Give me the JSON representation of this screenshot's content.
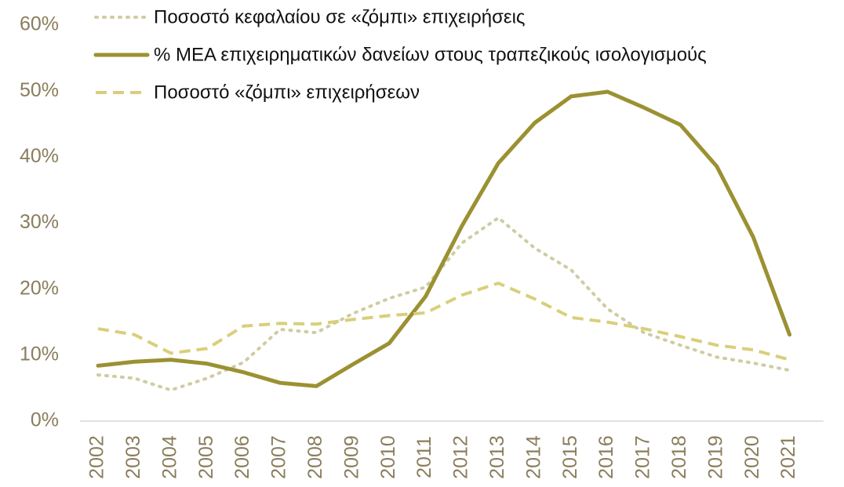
{
  "chart_data": {
    "type": "line",
    "categories": [
      "2002",
      "2003",
      "2004",
      "2005",
      "2006",
      "2007",
      "2008",
      "2009",
      "2010",
      "2011",
      "2012",
      "2013",
      "2014",
      "2015",
      "2016",
      "2017",
      "2018",
      "2019",
      "2020",
      "2021"
    ],
    "series": [
      {
        "name": "Ποσοστό κεφαλαίου σε «ζόμπι» επιχειρήσεις",
        "color": "#cfcca2",
        "dash": "dotted",
        "values": [
          7.0,
          6.5,
          4.7,
          6.5,
          8.9,
          13.9,
          13.4,
          16.3,
          18.6,
          20.3,
          27.0,
          30.8,
          26.2,
          22.9,
          17.0,
          13.4,
          11.5,
          9.7,
          8.8,
          7.7
        ]
      },
      {
        "name": "% ΜΕΑ επιχειρηματικών δανείων στους τραπεζικούς ισολογισμούς",
        "color": "#9b9132",
        "dash": "solid",
        "values": [
          8.4,
          9.0,
          9.3,
          8.7,
          7.4,
          5.8,
          5.3,
          8.6,
          11.8,
          18.9,
          29.6,
          39.1,
          45.2,
          49.2,
          49.9,
          47.5,
          44.9,
          38.6,
          27.9,
          13.1
        ]
      },
      {
        "name": "Ποσοστό «ζόμπι» επιχειρήσεων",
        "color": "#d9cf7a",
        "dash": "dashed",
        "values": [
          14.0,
          13.1,
          10.3,
          11.0,
          14.4,
          14.8,
          14.7,
          15.4,
          16.0,
          16.4,
          19.1,
          20.9,
          18.5,
          15.7,
          15.0,
          14.0,
          12.8,
          11.5,
          10.8,
          9.3
        ]
      }
    ],
    "ylim": [
      0,
      60
    ],
    "yticks": [
      {
        "value": 0,
        "label": "0%"
      },
      {
        "value": 10,
        "label": "10%"
      },
      {
        "value": 20,
        "label": "20%"
      },
      {
        "value": 30,
        "label": "30%"
      },
      {
        "value": 40,
        "label": "40%"
      },
      {
        "value": 50,
        "label": "50%"
      },
      {
        "value": 60,
        "label": "60%"
      }
    ],
    "legend": "top-left"
  }
}
